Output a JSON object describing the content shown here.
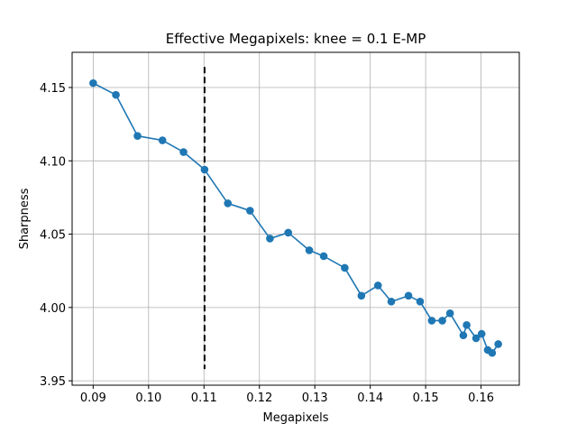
{
  "chart_data": {
    "type": "line",
    "title": "Effective Megapixels: knee = 0.1 E-MP",
    "xlabel": "Megapixels",
    "ylabel": "Sharpness",
    "xlim": [
      0.0862,
      0.1669
    ],
    "ylim": [
      3.947,
      4.174
    ],
    "xticks": [
      "0.09",
      "0.10",
      "0.11",
      "0.12",
      "0.13",
      "0.14",
      "0.15",
      "0.16"
    ],
    "xtick_values": [
      0.09,
      0.1,
      0.11,
      0.12,
      0.13,
      0.14,
      0.15,
      0.16
    ],
    "yticks": [
      "3.95",
      "4.00",
      "4.05",
      "4.10",
      "4.15"
    ],
    "ytick_values": [
      3.95,
      4.0,
      4.05,
      4.1,
      4.15
    ],
    "grid": true,
    "series": [
      {
        "name": "sharpness",
        "color": "#1f77b4",
        "marker": "circle",
        "x": [
          0.09,
          0.0941,
          0.098,
          0.1025,
          0.1063,
          0.1101,
          0.1143,
          0.1183,
          0.1219,
          0.1252,
          0.129,
          0.1316,
          0.1354,
          0.1384,
          0.1414,
          0.1438,
          0.1469,
          0.149,
          0.1511,
          0.153,
          0.1544,
          0.1568,
          0.1574,
          0.1591,
          0.1601,
          0.1612,
          0.162,
          0.1631
        ],
        "y": [
          4.153,
          4.145,
          4.117,
          4.114,
          4.106,
          4.094,
          4.071,
          4.066,
          4.047,
          4.051,
          4.039,
          4.035,
          4.027,
          4.008,
          4.015,
          4.004,
          4.008,
          4.004,
          3.991,
          3.991,
          3.996,
          3.981,
          3.988,
          3.979,
          3.982,
          3.971,
          3.969,
          3.975
        ]
      }
    ],
    "annotations": [
      {
        "type": "vline",
        "x": 0.1101,
        "y_range": [
          3.958,
          4.164
        ],
        "style": "dashed",
        "color": "#000000"
      }
    ]
  }
}
